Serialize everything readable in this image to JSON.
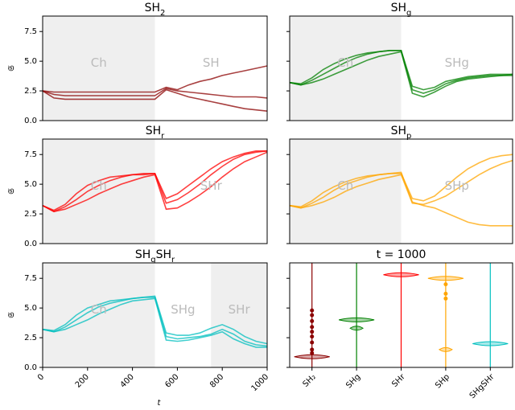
{
  "chart_data": [
    {
      "type": "line",
      "title": [
        {
          "text": "SH",
          "sub": "2"
        }
      ],
      "ylabel": "𝔖",
      "x": [
        0,
        50,
        100,
        150,
        200,
        250,
        300,
        350,
        400,
        450,
        500,
        550,
        600,
        650,
        700,
        750,
        800,
        850,
        900,
        950,
        1000
      ],
      "xlim": [
        0,
        1000
      ],
      "ylim": [
        0,
        8.8
      ],
      "yticks": [
        {
          "value": 0,
          "label": "0.0"
        },
        {
          "value": 2.5,
          "label": "2.5"
        },
        {
          "value": 5,
          "label": "5.0"
        },
        {
          "value": 7.5,
          "label": "7.5"
        }
      ],
      "regions": [
        {
          "start": 0,
          "end": 500,
          "label": "Ch",
          "shaded": true
        },
        {
          "start": 500,
          "end": 1000,
          "label": "SH",
          "shaded": false
        }
      ],
      "series": [
        {
          "color": "#8b0000",
          "values": [
            2.5,
            2.4,
            2.4,
            2.4,
            2.4,
            2.4,
            2.4,
            2.4,
            2.4,
            2.4,
            2.4,
            2.8,
            2.6,
            3.0,
            3.3,
            3.5,
            3.8,
            4.0,
            4.2,
            4.4,
            4.6
          ]
        },
        {
          "color": "#8b0000",
          "values": [
            2.5,
            1.9,
            1.8,
            1.8,
            1.8,
            1.8,
            1.8,
            1.8,
            1.8,
            1.8,
            1.8,
            2.6,
            2.3,
            2.0,
            1.8,
            1.6,
            1.4,
            1.2,
            1.0,
            0.9,
            0.8
          ]
        },
        {
          "color": "#8b0000",
          "values": [
            2.5,
            2.2,
            2.1,
            2.1,
            2.1,
            2.1,
            2.1,
            2.1,
            2.1,
            2.1,
            2.1,
            2.7,
            2.5,
            2.4,
            2.3,
            2.2,
            2.1,
            2.0,
            2.0,
            2.0,
            1.9
          ]
        }
      ]
    },
    {
      "type": "line",
      "title": [
        {
          "text": "SH",
          "sub": "g"
        }
      ],
      "x": [
        0,
        50,
        100,
        150,
        200,
        250,
        300,
        350,
        400,
        450,
        500,
        550,
        600,
        650,
        700,
        750,
        800,
        850,
        900,
        950,
        1000
      ],
      "xlim": [
        0,
        1000
      ],
      "ylim": [
        0,
        8.8
      ],
      "yticks": [
        0,
        2.5,
        5,
        7.5
      ],
      "regions": [
        {
          "start": 0,
          "end": 500,
          "label": "Ch",
          "shaded": true
        },
        {
          "start": 500,
          "end": 1000,
          "label": "SHg",
          "shaded": false
        }
      ],
      "series": [
        {
          "color": "#008000",
          "values": [
            3.2,
            3.0,
            3.4,
            3.9,
            4.4,
            4.9,
            5.3,
            5.6,
            5.8,
            5.9,
            5.9,
            2.6,
            2.3,
            2.6,
            3.1,
            3.4,
            3.6,
            3.7,
            3.8,
            3.8,
            3.9
          ]
        },
        {
          "color": "#008000",
          "values": [
            3.2,
            3.0,
            3.2,
            3.5,
            3.9,
            4.3,
            4.7,
            5.1,
            5.4,
            5.6,
            5.8,
            2.3,
            2.0,
            2.4,
            2.9,
            3.3,
            3.5,
            3.6,
            3.7,
            3.8,
            3.8
          ]
        },
        {
          "color": "#008000",
          "values": [
            3.2,
            3.1,
            3.6,
            4.3,
            4.8,
            5.2,
            5.5,
            5.7,
            5.8,
            5.9,
            5.9,
            2.9,
            2.6,
            2.8,
            3.3,
            3.5,
            3.7,
            3.8,
            3.9,
            3.9,
            3.9
          ]
        }
      ]
    },
    {
      "type": "line",
      "title": [
        {
          "text": "SH",
          "sub": "r"
        }
      ],
      "ylabel": "𝔖",
      "x": [
        0,
        50,
        100,
        150,
        200,
        250,
        300,
        350,
        400,
        450,
        500,
        550,
        600,
        650,
        700,
        750,
        800,
        850,
        900,
        950,
        1000
      ],
      "xlim": [
        0,
        1000
      ],
      "ylim": [
        0,
        8.8
      ],
      "yticks": [
        {
          "value": 0,
          "label": "0.0"
        },
        {
          "value": 2.5,
          "label": "2.5"
        },
        {
          "value": 5,
          "label": "5.0"
        },
        {
          "value": 7.5,
          "label": "7.5"
        }
      ],
      "regions": [
        {
          "start": 0,
          "end": 500,
          "label": "Ch",
          "shaded": true
        },
        {
          "start": 500,
          "end": 1000,
          "label": "SHr",
          "shaded": false
        }
      ],
      "series": [
        {
          "color": "#ff0000",
          "values": [
            3.2,
            2.7,
            3.1,
            3.7,
            4.4,
            4.9,
            5.3,
            5.6,
            5.8,
            5.8,
            5.9,
            3.4,
            3.7,
            4.3,
            5.0,
            5.8,
            6.5,
            7.1,
            7.5,
            7.7,
            7.8
          ]
        },
        {
          "color": "#ff0000",
          "values": [
            3.2,
            2.7,
            2.9,
            3.3,
            3.7,
            4.2,
            4.6,
            5.0,
            5.3,
            5.6,
            5.8,
            2.9,
            3.0,
            3.5,
            4.1,
            4.8,
            5.6,
            6.3,
            6.9,
            7.3,
            7.7
          ]
        },
        {
          "color": "#ff0000",
          "values": [
            3.2,
            2.8,
            3.3,
            4.2,
            4.9,
            5.3,
            5.6,
            5.7,
            5.8,
            5.9,
            5.9,
            3.8,
            4.2,
            4.9,
            5.6,
            6.3,
            6.9,
            7.3,
            7.6,
            7.8,
            7.8
          ]
        }
      ]
    },
    {
      "type": "line",
      "title": [
        {
          "text": "SH",
          "sub": "p"
        }
      ],
      "x": [
        0,
        50,
        100,
        150,
        200,
        250,
        300,
        350,
        400,
        450,
        500,
        550,
        600,
        650,
        700,
        750,
        800,
        850,
        900,
        950,
        1000
      ],
      "xlim": [
        0,
        1000
      ],
      "ylim": [
        0,
        8.8
      ],
      "yticks": [
        0,
        2.5,
        5,
        7.5
      ],
      "regions": [
        {
          "start": 0,
          "end": 500,
          "label": "Ch",
          "shaded": true
        },
        {
          "start": 500,
          "end": 1000,
          "label": "SHp",
          "shaded": false
        }
      ],
      "series": [
        {
          "color": "#ffa500",
          "values": [
            3.2,
            3.0,
            3.4,
            3.9,
            4.5,
            5.0,
            5.3,
            5.6,
            5.8,
            5.9,
            5.9,
            3.8,
            3.6,
            4.0,
            4.8,
            5.6,
            6.3,
            6.8,
            7.2,
            7.4,
            7.5
          ]
        },
        {
          "color": "#ffa500",
          "values": [
            3.2,
            3.0,
            3.2,
            3.5,
            3.9,
            4.4,
            4.8,
            5.1,
            5.4,
            5.6,
            5.8,
            3.4,
            3.3,
            3.6,
            4.0,
            4.6,
            5.2,
            5.8,
            6.3,
            6.7,
            7.0
          ]
        },
        {
          "color": "#ffa500",
          "values": [
            3.2,
            3.1,
            3.6,
            4.3,
            4.8,
            5.2,
            5.5,
            5.7,
            5.8,
            5.9,
            6.0,
            3.5,
            3.2,
            3.0,
            2.6,
            2.2,
            1.8,
            1.6,
            1.5,
            1.5,
            1.5
          ]
        }
      ]
    },
    {
      "type": "line",
      "title": [
        {
          "text": "SH",
          "sub": "g"
        },
        {
          "text": "SH",
          "sub": "r"
        }
      ],
      "ylabel": "𝔖",
      "xlabel": "t",
      "x": [
        0,
        50,
        100,
        150,
        200,
        250,
        300,
        350,
        400,
        450,
        500,
        550,
        600,
        650,
        700,
        750,
        800,
        850,
        900,
        950,
        1000
      ],
      "xlim": [
        0,
        1000
      ],
      "ylim": [
        0,
        8.8
      ],
      "xticks": [
        0,
        200,
        400,
        600,
        800,
        1000
      ],
      "yticks": [
        {
          "value": 0,
          "label": "0.0"
        },
        {
          "value": 2.5,
          "label": "2.5"
        },
        {
          "value": 5,
          "label": "5.0"
        },
        {
          "value": 7.5,
          "label": "7.5"
        }
      ],
      "regions": [
        {
          "start": 0,
          "end": 500,
          "label": "Ch",
          "shaded": true
        },
        {
          "start": 500,
          "end": 750,
          "label": "SHg",
          "shaded": false
        },
        {
          "start": 750,
          "end": 1000,
          "label": "SHr",
          "shaded": true
        }
      ],
      "series": [
        {
          "color": "#00bfbf",
          "values": [
            3.2,
            3.0,
            3.4,
            4.0,
            4.6,
            5.1,
            5.4,
            5.6,
            5.8,
            5.9,
            5.9,
            2.6,
            2.4,
            2.5,
            2.6,
            2.8,
            3.2,
            2.8,
            2.2,
            1.9,
            1.8
          ]
        },
        {
          "color": "#00bfbf",
          "values": [
            3.2,
            3.0,
            3.2,
            3.6,
            4.0,
            4.5,
            4.9,
            5.3,
            5.6,
            5.7,
            5.8,
            2.3,
            2.2,
            2.3,
            2.5,
            2.7,
            3.0,
            2.4,
            2.0,
            1.7,
            1.7
          ]
        },
        {
          "color": "#00bfbf",
          "values": [
            3.2,
            3.1,
            3.6,
            4.4,
            5.0,
            5.3,
            5.6,
            5.7,
            5.8,
            5.9,
            6.0,
            2.9,
            2.7,
            2.7,
            2.9,
            3.3,
            3.6,
            3.2,
            2.6,
            2.2,
            2.0
          ]
        }
      ]
    },
    {
      "type": "violin",
      "title": [
        {
          "text": "t = 1000"
        }
      ],
      "categories": [
        "SH₂",
        "SHg",
        "SHr",
        "SHp",
        "SHgSHr"
      ],
      "ylim": [
        0,
        8.8
      ],
      "yticks": [
        0,
        2.5,
        5,
        7.5
      ],
      "series": [
        {
          "color": "#8b0000",
          "peaks": [
            0.9
          ],
          "points": [
            1.2,
            1.5,
            2.1,
            2.6,
            3.0,
            3.4,
            3.9,
            4.4,
            4.8
          ]
        },
        {
          "color": "#008000",
          "peaks": [
            4.0,
            3.3
          ],
          "points": []
        },
        {
          "color": "#ff0000",
          "peaks": [
            7.8
          ],
          "points": []
        },
        {
          "color": "#ffa500",
          "peaks": [
            7.5,
            1.5
          ],
          "points": [
            5.8,
            6.2,
            7.0
          ]
        },
        {
          "color": "#00bfbf",
          "peaks": [
            2.0
          ],
          "points": []
        }
      ]
    }
  ]
}
